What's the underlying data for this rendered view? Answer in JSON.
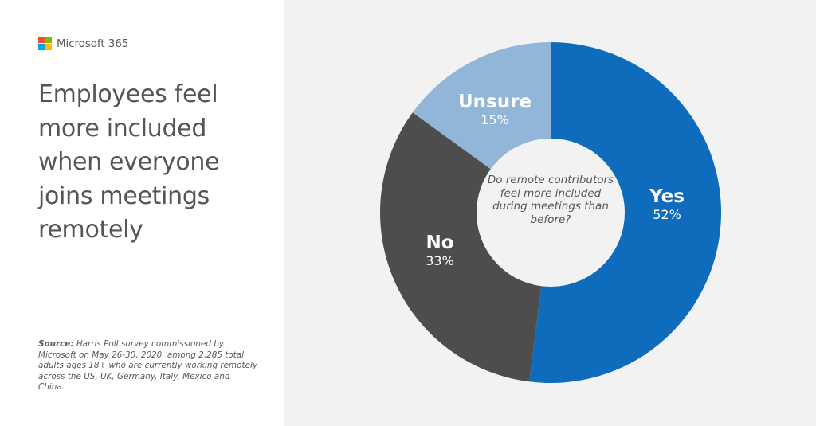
{
  "brand": {
    "name": "Microsoft 365",
    "logo_colors": [
      "#f25022",
      "#7fba00",
      "#00a4ef",
      "#ffb900"
    ]
  },
  "headline": "Employees feel more included when everyone joins meetings remotely",
  "source": {
    "label": "Source:",
    "text": " Harris Poll survey commissioned by Microsoft on May 26-30, 2020, among 2,285 total adults ages 18+ who are currently working remotely across the US, UK, Germany, Italy, Mexico and China."
  },
  "colors": {
    "yes": "#0f6cbd",
    "no": "#4d4d4d",
    "unsure": "#91b6d8",
    "center": "#f2f2f2",
    "background_right": "#f2f2f2",
    "background_left": "#ffffff"
  },
  "chart_data": {
    "type": "pie",
    "subtype": "donut",
    "title": "Do remote contributors feel more included during meetings than before?",
    "categories": [
      "Yes",
      "No",
      "Unsure"
    ],
    "values": [
      52,
      33,
      15
    ],
    "unit": "%",
    "labels": [
      {
        "name": "Yes",
        "pct": "52%"
      },
      {
        "name": "No",
        "pct": "33%"
      },
      {
        "name": "Unsure",
        "pct": "15%"
      }
    ],
    "start_angle_deg": 0,
    "direction": "clockwise",
    "legend": "none (direct labels on segments)"
  }
}
